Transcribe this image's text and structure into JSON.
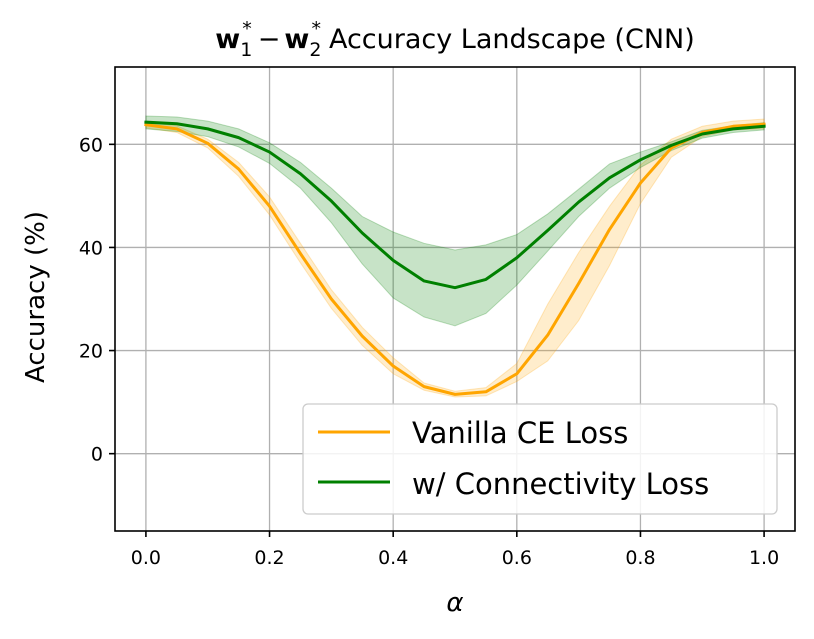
{
  "chart_data": {
    "type": "line",
    "title": {
      "vector_1": "w",
      "sub_1": "1",
      "sup_1": "*",
      "operator": "−",
      "vector_2": "w",
      "sub_2": "2",
      "sup_2": "*",
      "rest": "Accuracy Landscape (CNN)"
    },
    "xlabel": "α",
    "ylabel": "Accuracy (%)",
    "xlim": [
      -0.05,
      1.05
    ],
    "ylim": [
      -15,
      75
    ],
    "xticks": [
      0.0,
      0.2,
      0.4,
      0.6,
      0.8,
      1.0
    ],
    "xtick_labels": [
      "0.0",
      "0.2",
      "0.4",
      "0.6",
      "0.8",
      "1.0"
    ],
    "yticks": [
      0,
      20,
      40,
      60
    ],
    "ytick_labels": [
      "0",
      "20",
      "40",
      "60"
    ],
    "grid": true,
    "legend_position": "lower-right",
    "x": [
      0.0,
      0.05,
      0.1,
      0.15,
      0.2,
      0.25,
      0.3,
      0.35,
      0.4,
      0.45,
      0.5,
      0.55,
      0.6,
      0.65,
      0.7,
      0.75,
      0.8,
      0.85,
      0.9,
      0.95,
      1.0
    ],
    "series": [
      {
        "name": "Vanilla CE Loss",
        "color": "#ffa500",
        "values": [
          63.8,
          63.0,
          60.2,
          55.2,
          48.0,
          38.8,
          30.0,
          22.8,
          17.0,
          13.0,
          11.5,
          12.0,
          15.5,
          23.0,
          33.0,
          43.5,
          52.5,
          59.3,
          62.3,
          63.5,
          63.9
        ],
        "lower": [
          63.2,
          62.3,
          59.3,
          53.8,
          46.3,
          37.0,
          28.2,
          21.0,
          15.5,
          12.3,
          11.0,
          11.2,
          14.0,
          18.0,
          25.8,
          36.5,
          48.5,
          57.5,
          61.5,
          62.8,
          63.0
        ],
        "upper": [
          64.3,
          63.6,
          61.0,
          56.5,
          49.8,
          40.8,
          31.8,
          24.5,
          18.6,
          13.7,
          12.1,
          12.8,
          17.5,
          29.0,
          39.0,
          48.0,
          56.0,
          61.0,
          63.5,
          64.5,
          64.9
        ]
      },
      {
        "name": "w/ Connectivity Loss",
        "color": "#008000",
        "values": [
          64.3,
          64.0,
          63.0,
          61.3,
          58.5,
          54.3,
          49.0,
          42.8,
          37.5,
          33.5,
          32.2,
          33.8,
          38.0,
          43.3,
          48.8,
          53.5,
          57.0,
          59.8,
          62.0,
          63.0,
          63.5
        ],
        "lower": [
          63.0,
          62.5,
          61.5,
          59.5,
          56.3,
          51.5,
          44.8,
          36.8,
          30.2,
          26.5,
          24.8,
          27.2,
          32.7,
          39.3,
          46.0,
          51.5,
          55.5,
          58.8,
          61.2,
          62.3,
          62.8
        ],
        "upper": [
          65.5,
          65.3,
          64.5,
          63.0,
          60.3,
          56.5,
          51.5,
          46.0,
          43.0,
          40.8,
          39.5,
          40.5,
          42.5,
          46.5,
          51.3,
          56.2,
          58.5,
          60.5,
          62.7,
          63.6,
          64.2
        ]
      }
    ]
  }
}
